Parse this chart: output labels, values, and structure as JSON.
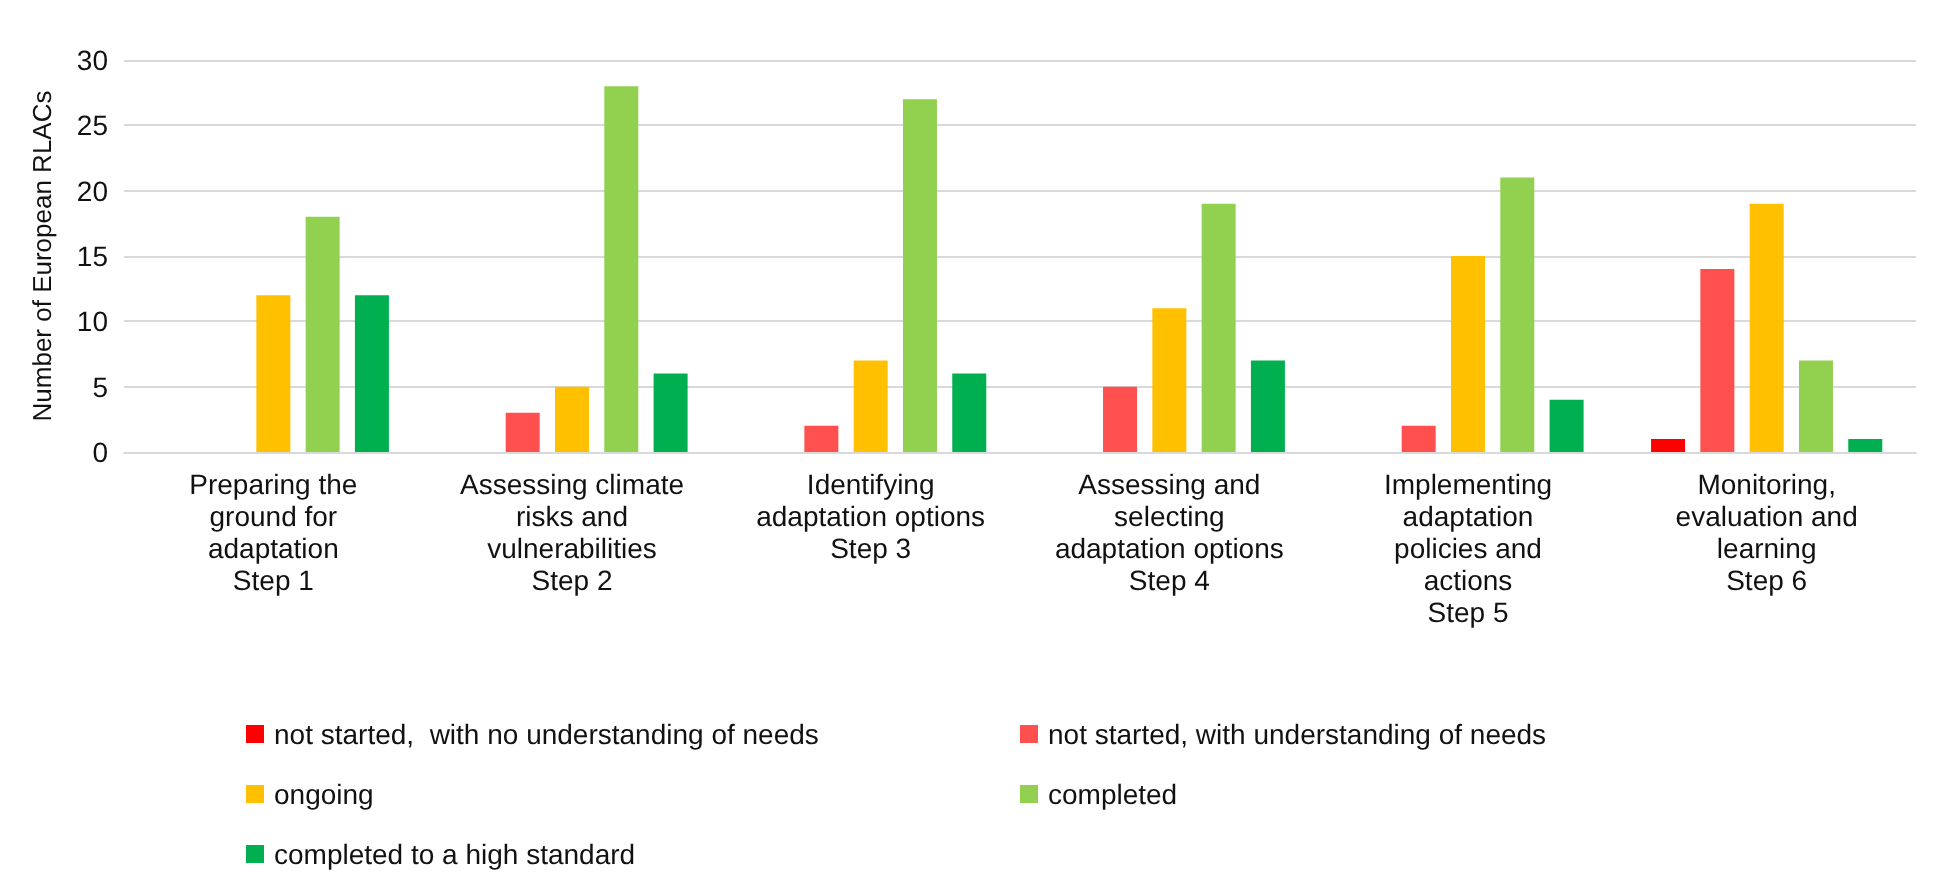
{
  "chart_data": {
    "type": "bar",
    "ylabel": "Number of European RLACs",
    "categories": [
      "Preparing the\nground for\nadaptation\nStep 1",
      "Assessing climate\nrisks and\nvulnerabilities\nStep 2",
      "Identifying\nadaptation options\nStep 3",
      "Assessing and\nselecting\nadaptation options\nStep 4",
      "Implementing\nadaptation\npolicies and\nactions\nStep 5",
      "Monitoring,\nevaluation and\nlearning\nStep 6"
    ],
    "series": [
      {
        "name": "not started,  with no understanding of needs",
        "color": "#ff0000",
        "values": [
          0,
          0,
          0,
          0,
          0,
          1
        ]
      },
      {
        "name": "not started, with understanding of needs",
        "color": "#ff5050",
        "values": [
          0,
          3,
          2,
          5,
          2,
          14
        ]
      },
      {
        "name": "ongoing",
        "color": "#ffc000",
        "values": [
          12,
          5,
          7,
          11,
          15,
          19
        ]
      },
      {
        "name": "completed",
        "color": "#92d050",
        "values": [
          18,
          28,
          27,
          19,
          21,
          7
        ]
      },
      {
        "name": "completed to a high standard",
        "color": "#00b050",
        "values": [
          12,
          6,
          6,
          7,
          4,
          1
        ]
      }
    ],
    "ylim": [
      0,
      30
    ],
    "yticks": [
      0,
      5,
      10,
      15,
      20,
      25,
      30
    ],
    "grid": "y",
    "legend": "bottom"
  }
}
